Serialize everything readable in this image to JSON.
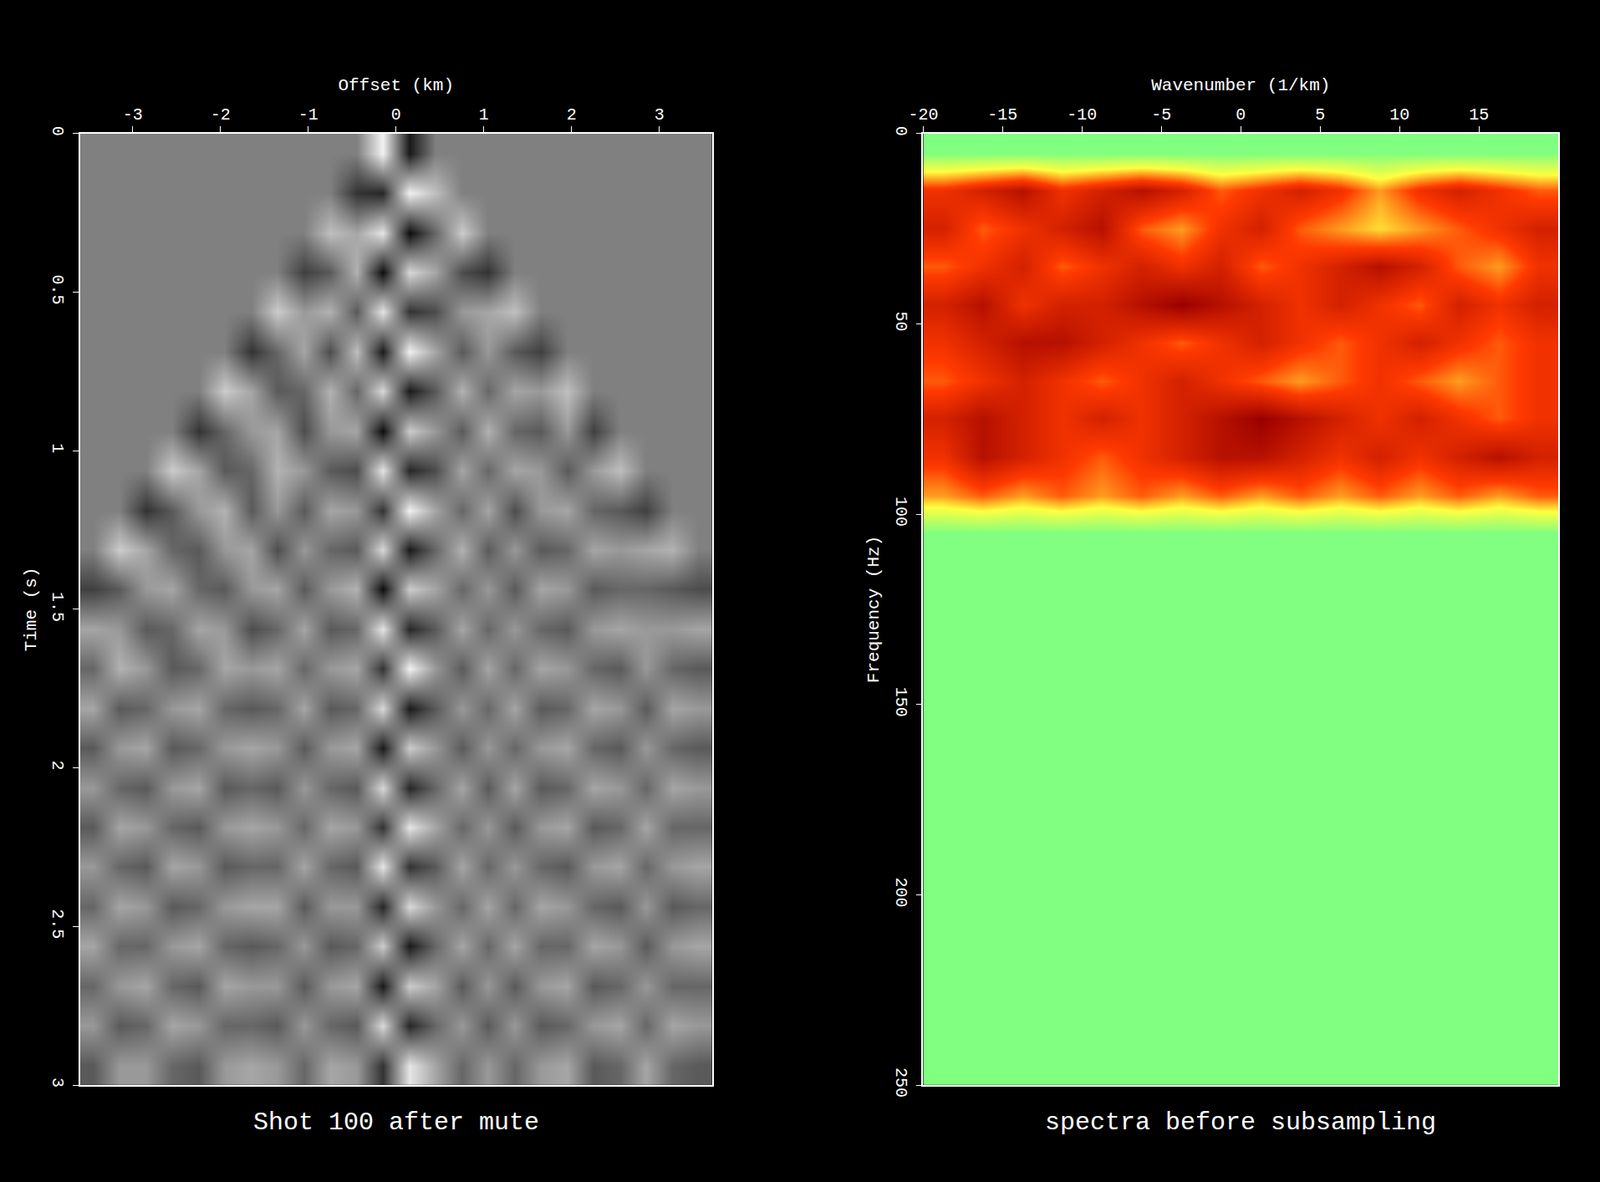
{
  "chart_data": [
    {
      "type": "heatmap",
      "title": "Shot 100 after mute",
      "x_label": "Offset (km)",
      "y_label": "Time (s)",
      "xlim": [
        -3.6,
        3.6
      ],
      "ylim": [
        3,
        0
      ],
      "xticks": [
        -3,
        -2,
        -1,
        0,
        1,
        2,
        3
      ],
      "yticks": [
        0,
        0.5,
        1,
        1.5,
        2,
        2.5,
        3
      ],
      "zlim": [
        -1,
        1
      ],
      "x": [
        -3.45,
        -3.15,
        -2.85,
        -2.55,
        -2.25,
        -1.95,
        -1.65,
        -1.35,
        -1.05,
        -0.75,
        -0.45,
        -0.15,
        0.15,
        0.45,
        0.75,
        1.05,
        1.35,
        1.65,
        1.95,
        2.25,
        2.55,
        2.85,
        3.15,
        3.45
      ],
      "y": [
        0.0625,
        0.1875,
        0.3125,
        0.4375,
        0.5625,
        0.6875,
        0.8125,
        0.9375,
        1.0625,
        1.1875,
        1.3125,
        1.4375,
        1.5625,
        1.6875,
        1.8125,
        1.9375,
        2.0625,
        2.1875,
        2.3125,
        2.4375,
        2.5625,
        2.6875,
        2.8125,
        2.9375
      ],
      "cells": [
        [
          0,
          0,
          0,
          0,
          0,
          0,
          0,
          0,
          0,
          0,
          0,
          0.9,
          -0.8,
          0,
          0,
          0,
          0,
          0,
          0,
          0,
          0,
          0,
          0,
          0
        ],
        [
          0,
          0,
          0,
          0,
          0,
          0,
          0,
          0,
          0,
          0,
          -0.6,
          -0.7,
          0.9,
          0.5,
          0,
          0,
          0,
          0,
          0,
          0,
          0,
          0,
          0,
          0
        ],
        [
          0,
          0,
          0,
          0,
          0,
          0,
          0,
          0,
          0,
          0.5,
          0.3,
          0.8,
          -0.9,
          -0.2,
          0.6,
          0,
          0,
          0,
          0,
          0,
          0,
          0,
          0,
          0
        ],
        [
          0,
          0,
          0,
          0,
          0,
          0,
          0,
          0,
          -0.5,
          -0.3,
          0.4,
          -0.9,
          0.7,
          0.3,
          -0.4,
          -0.6,
          0,
          0,
          0,
          0,
          0,
          0,
          0,
          0
        ],
        [
          0,
          0,
          0,
          0,
          0,
          0,
          0,
          0.6,
          0.2,
          0.4,
          -0.3,
          0.8,
          -0.6,
          -0.4,
          0.2,
          0.3,
          0.5,
          0,
          0,
          0,
          0,
          0,
          0,
          0
        ],
        [
          0,
          0,
          0,
          0,
          0,
          0,
          -0.6,
          -0.2,
          0.3,
          -0.4,
          0.5,
          -0.8,
          0.9,
          0.3,
          -0.3,
          0.2,
          -0.3,
          -0.5,
          0,
          0,
          0,
          0,
          0,
          0
        ],
        [
          0,
          0,
          0,
          0,
          0,
          0.6,
          0.3,
          -0.3,
          -0.2,
          0.4,
          -0.2,
          0.7,
          -0.8,
          -0.3,
          0.4,
          -0.2,
          0.3,
          0.2,
          0.5,
          0,
          0,
          0,
          0,
          0
        ],
        [
          0,
          0,
          0,
          0,
          -0.6,
          -0.2,
          0.2,
          0.3,
          -0.4,
          0.2,
          0.3,
          -0.9,
          0.6,
          0.2,
          -0.3,
          0.4,
          -0.2,
          -0.3,
          0.2,
          -0.5,
          0,
          0,
          0,
          0
        ],
        [
          0,
          0,
          0,
          0.6,
          0.3,
          -0.3,
          -0.2,
          0.4,
          0.2,
          -0.3,
          -0.4,
          0.8,
          -0.7,
          -0.4,
          0.3,
          -0.2,
          0.3,
          0.2,
          -0.3,
          0.2,
          0.5,
          0,
          0,
          0
        ],
        [
          0,
          0,
          -0.6,
          -0.3,
          0.2,
          0.4,
          -0.3,
          0.2,
          -0.3,
          0.3,
          0.2,
          -0.6,
          0.9,
          0.3,
          -0.2,
          0.3,
          -0.4,
          0.2,
          0.3,
          -0.2,
          -0.3,
          -0.5,
          0,
          0
        ],
        [
          0,
          0.6,
          0.3,
          -0.2,
          -0.3,
          0.2,
          0.3,
          -0.4,
          0.2,
          -0.2,
          -0.3,
          0.7,
          -0.8,
          -0.2,
          0.4,
          -0.3,
          0.2,
          -0.3,
          -0.2,
          0.3,
          0.2,
          0.3,
          0.4,
          0
        ],
        [
          -0.5,
          -0.3,
          0.2,
          0.3,
          -0.2,
          -0.3,
          0.2,
          0.3,
          -0.3,
          0.2,
          0.4,
          -0.9,
          0.6,
          0.3,
          -0.2,
          0.2,
          -0.3,
          0.3,
          0.2,
          -0.3,
          -0.2,
          -0.2,
          -0.3,
          -0.4
        ],
        [
          0.3,
          0.2,
          -0.3,
          -0.2,
          0.3,
          0.2,
          -0.4,
          -0.2,
          0.3,
          -0.3,
          -0.2,
          0.8,
          -0.7,
          -0.3,
          0.3,
          -0.2,
          0.2,
          -0.2,
          -0.3,
          0.2,
          0.3,
          0.2,
          0.2,
          0.3
        ],
        [
          -0.2,
          0.4,
          0.2,
          -0.3,
          -0.2,
          0.3,
          0.2,
          0.3,
          -0.2,
          0.2,
          0.3,
          -0.6,
          0.9,
          0.2,
          -0.3,
          0.3,
          -0.2,
          0.3,
          0.2,
          -0.2,
          -0.3,
          0.2,
          -0.2,
          -0.3
        ],
        [
          0.3,
          -0.3,
          -0.2,
          0.2,
          0.3,
          -0.2,
          -0.3,
          -0.2,
          0.3,
          -0.3,
          -0.2,
          0.7,
          -0.8,
          -0.3,
          0.2,
          -0.2,
          0.3,
          -0.3,
          -0.2,
          0.3,
          0.2,
          -0.3,
          0.3,
          0.2
        ],
        [
          -0.3,
          0.2,
          0.3,
          -0.3,
          -0.2,
          0.2,
          0.3,
          0.2,
          -0.3,
          0.2,
          0.3,
          -0.8,
          0.6,
          0.2,
          -0.3,
          0.2,
          -0.2,
          0.2,
          0.3,
          -0.2,
          -0.3,
          0.2,
          -0.2,
          -0.3
        ],
        [
          0.2,
          -0.2,
          -0.3,
          0.2,
          0.3,
          -0.3,
          -0.2,
          -0.3,
          0.2,
          -0.2,
          -0.3,
          0.7,
          -0.7,
          -0.2,
          0.3,
          -0.3,
          0.3,
          -0.3,
          -0.2,
          0.3,
          0.2,
          -0.2,
          0.3,
          0.2
        ],
        [
          -0.3,
          0.3,
          0.2,
          -0.2,
          -0.3,
          0.2,
          0.3,
          0.2,
          -0.2,
          0.3,
          0.2,
          -0.6,
          0.8,
          0.3,
          -0.2,
          0.2,
          -0.3,
          0.2,
          0.3,
          -0.3,
          -0.2,
          0.3,
          -0.2,
          -0.2
        ],
        [
          0.2,
          -0.2,
          -0.3,
          0.3,
          0.2,
          -0.3,
          -0.2,
          -0.2,
          0.3,
          -0.2,
          -0.3,
          0.8,
          -0.6,
          -0.3,
          0.3,
          -0.2,
          0.2,
          -0.2,
          -0.3,
          0.2,
          0.3,
          -0.2,
          0.2,
          0.3
        ],
        [
          -0.2,
          0.3,
          0.2,
          -0.3,
          -0.2,
          0.2,
          0.3,
          0.3,
          -0.3,
          0.2,
          0.2,
          -0.7,
          0.7,
          0.2,
          -0.2,
          0.3,
          -0.2,
          0.3,
          0.2,
          -0.2,
          -0.3,
          0.2,
          -0.3,
          -0.2
        ],
        [
          0.3,
          -0.2,
          -0.2,
          0.2,
          0.3,
          -0.2,
          -0.3,
          -0.2,
          0.2,
          -0.3,
          -0.2,
          0.6,
          -0.8,
          -0.2,
          0.3,
          -0.2,
          0.3,
          -0.2,
          -0.2,
          0.3,
          0.2,
          -0.3,
          0.2,
          0.3
        ],
        [
          -0.2,
          0.2,
          0.3,
          -0.2,
          -0.3,
          0.3,
          0.2,
          0.2,
          -0.3,
          0.2,
          0.3,
          -0.8,
          0.6,
          0.3,
          -0.3,
          0.2,
          -0.3,
          0.2,
          0.3,
          -0.3,
          -0.2,
          0.2,
          -0.2,
          -0.2
        ],
        [
          0.2,
          -0.3,
          -0.2,
          0.3,
          0.2,
          -0.2,
          -0.2,
          -0.3,
          0.2,
          -0.2,
          -0.3,
          0.7,
          -0.7,
          -0.2,
          0.2,
          -0.3,
          0.2,
          -0.3,
          -0.2,
          0.2,
          0.3,
          -0.2,
          0.3,
          0.2
        ],
        [
          -0.3,
          0.2,
          0.2,
          -0.2,
          -0.3,
          0.2,
          0.3,
          0.2,
          -0.2,
          0.3,
          0.2,
          -0.6,
          0.8,
          0.3,
          -0.2,
          0.2,
          -0.2,
          0.2,
          0.3,
          -0.3,
          -0.2,
          0.3,
          -0.2,
          -0.3
        ]
      ]
    },
    {
      "type": "heatmap",
      "title": "spectra before subsampling",
      "x_label": "Wavenumber (1/km)",
      "y_label": "Frequency (Hz)",
      "xlim": [
        -20,
        20
      ],
      "ylim": [
        250,
        0
      ],
      "xticks": [
        -20,
        -15,
        -10,
        -5,
        0,
        5,
        10,
        15
      ],
      "yticks": [
        0,
        50,
        100,
        150,
        200,
        250
      ],
      "zlim": [
        0,
        1
      ],
      "x": [
        -18.75,
        -16.25,
        -13.75,
        -11.25,
        -8.75,
        -6.25,
        -3.75,
        -1.25,
        1.25,
        3.75,
        6.25,
        8.75,
        11.25,
        13.75,
        16.25,
        18.75
      ],
      "y": [
        5,
        15,
        25,
        35,
        45,
        55,
        65,
        75,
        85,
        95,
        105,
        115,
        125,
        135,
        145,
        155,
        165,
        175,
        185,
        195,
        205,
        215,
        225,
        235,
        245
      ],
      "cells": [
        [
          0,
          0,
          0,
          0,
          0,
          0,
          0,
          0,
          0,
          0,
          0,
          0,
          0,
          0,
          0,
          0
        ],
        [
          0.7,
          0.8,
          0.9,
          0.7,
          0.8,
          0.9,
          0.8,
          0.6,
          0.7,
          0.8,
          0.7,
          0.5,
          0.7,
          0.8,
          0.7,
          0.6
        ],
        [
          0.8,
          0.6,
          0.7,
          0.8,
          0.9,
          0.6,
          0.5,
          0.7,
          0.8,
          0.6,
          0.5,
          0.4,
          0.5,
          0.6,
          0.7,
          0.8
        ],
        [
          0.6,
          0.7,
          0.8,
          0.6,
          0.7,
          0.8,
          0.7,
          0.8,
          0.6,
          0.7,
          0.8,
          0.9,
          0.8,
          0.6,
          0.5,
          0.7
        ],
        [
          0.8,
          0.9,
          0.7,
          0.8,
          0.8,
          0.9,
          1.0,
          0.9,
          0.8,
          0.7,
          0.8,
          0.7,
          0.6,
          0.8,
          0.7,
          0.8
        ],
        [
          0.7,
          0.8,
          0.9,
          0.9,
          0.8,
          0.7,
          0.6,
          0.7,
          0.8,
          0.7,
          0.6,
          0.7,
          0.8,
          0.7,
          0.6,
          0.7
        ],
        [
          0.6,
          0.7,
          0.8,
          0.7,
          0.6,
          0.7,
          0.8,
          0.7,
          0.6,
          0.5,
          0.6,
          0.7,
          0.6,
          0.5,
          0.6,
          0.7
        ],
        [
          0.8,
          0.9,
          0.8,
          0.7,
          0.8,
          0.7,
          0.8,
          0.9,
          1.0,
          0.9,
          0.8,
          0.7,
          0.8,
          0.7,
          0.6,
          0.7
        ],
        [
          0.7,
          0.9,
          0.8,
          0.7,
          0.6,
          0.7,
          0.8,
          0.9,
          0.9,
          0.8,
          0.7,
          0.8,
          0.7,
          0.8,
          0.9,
          0.8
        ],
        [
          0.5,
          0.6,
          0.5,
          0.6,
          0.5,
          0.6,
          0.5,
          0.6,
          0.5,
          0.6,
          0.5,
          0.6,
          0.5,
          0.6,
          0.5,
          0.6
        ],
        [
          0,
          0,
          0,
          0,
          0,
          0,
          0,
          0,
          0,
          0,
          0,
          0,
          0,
          0,
          0,
          0
        ],
        [
          0,
          0,
          0,
          0,
          0,
          0,
          0,
          0,
          0,
          0,
          0,
          0,
          0,
          0,
          0,
          0
        ],
        [
          0,
          0,
          0,
          0,
          0,
          0,
          0,
          0,
          0,
          0,
          0,
          0,
          0,
          0,
          0,
          0
        ],
        [
          0,
          0,
          0,
          0,
          0,
          0,
          0,
          0,
          0,
          0,
          0,
          0,
          0,
          0,
          0,
          0
        ],
        [
          0,
          0,
          0,
          0,
          0,
          0,
          0,
          0,
          0,
          0,
          0,
          0,
          0,
          0,
          0,
          0
        ],
        [
          0,
          0,
          0,
          0,
          0,
          0,
          0,
          0,
          0,
          0,
          0,
          0,
          0,
          0,
          0,
          0
        ],
        [
          0,
          0,
          0,
          0,
          0,
          0,
          0,
          0,
          0,
          0,
          0,
          0,
          0,
          0,
          0,
          0
        ],
        [
          0,
          0,
          0,
          0,
          0,
          0,
          0,
          0,
          0,
          0,
          0,
          0,
          0,
          0,
          0,
          0
        ],
        [
          0,
          0,
          0,
          0,
          0,
          0,
          0,
          0,
          0,
          0,
          0,
          0,
          0,
          0,
          0,
          0
        ],
        [
          0,
          0,
          0,
          0,
          0,
          0,
          0,
          0,
          0,
          0,
          0,
          0,
          0,
          0,
          0,
          0
        ],
        [
          0,
          0,
          0,
          0,
          0,
          0,
          0,
          0,
          0,
          0,
          0,
          0,
          0,
          0,
          0,
          0
        ],
        [
          0,
          0,
          0,
          0,
          0,
          0,
          0,
          0,
          0,
          0,
          0,
          0,
          0,
          0,
          0,
          0
        ],
        [
          0,
          0,
          0,
          0,
          0,
          0,
          0,
          0,
          0,
          0,
          0,
          0,
          0,
          0,
          0,
          0
        ],
        [
          0,
          0,
          0,
          0,
          0,
          0,
          0,
          0,
          0,
          0,
          0,
          0,
          0,
          0,
          0,
          0
        ],
        [
          0,
          0,
          0,
          0,
          0,
          0,
          0,
          0,
          0,
          0,
          0,
          0,
          0,
          0,
          0,
          0
        ]
      ]
    }
  ]
}
